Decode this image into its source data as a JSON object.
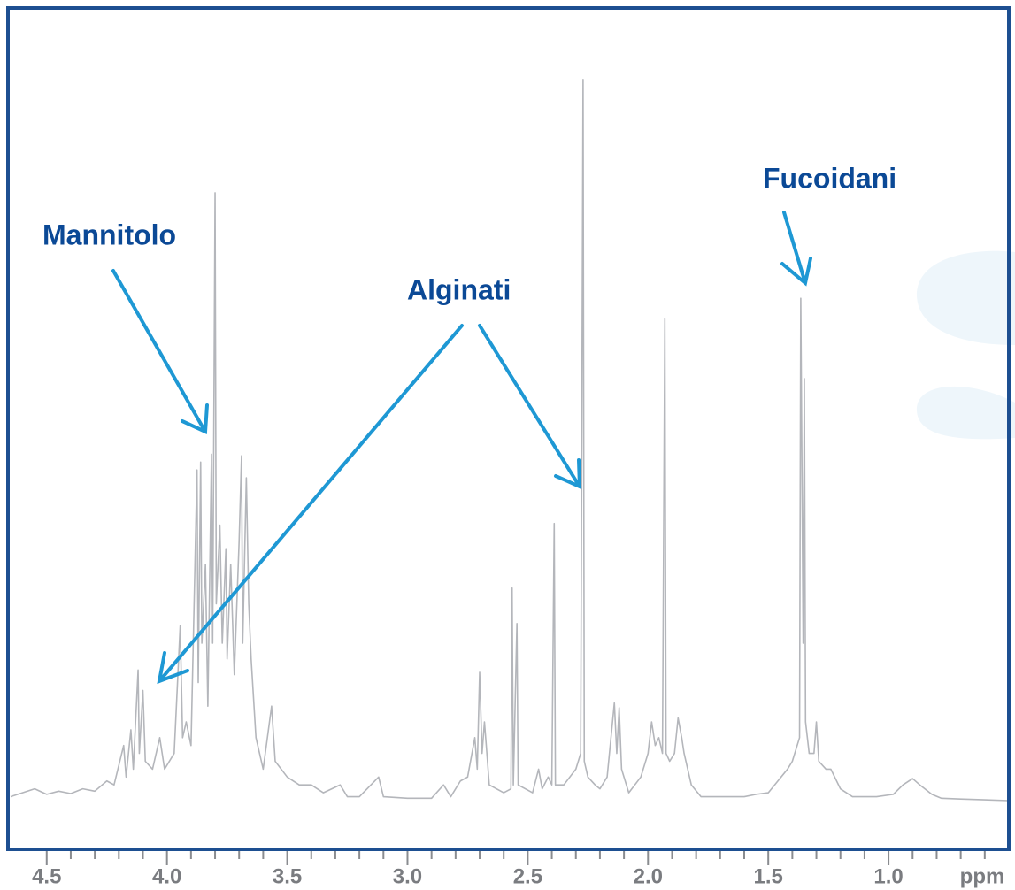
{
  "chart_data": {
    "type": "line",
    "x_label": "ppm",
    "annotations": [
      "Mannitolo",
      "Alginati",
      "Fucoidani"
    ],
    "color": "#b4b6bb",
    "xlim": [
      4.65,
      0.5
    ],
    "ylim": [
      0,
      100
    ],
    "xticks": [
      4.5,
      {
        "value": 4,
        "label": "4.0"
      },
      3.5,
      {
        "value": 3,
        "label": "3.0"
      },
      2.5,
      {
        "value": 2,
        "label": "2.0"
      },
      1.5,
      {
        "value": 1,
        "label": "1.0"
      }
    ],
    "minor_xticks": [
      4.4,
      4.3,
      4.2,
      4.1,
      3.9,
      3.8,
      3.7,
      3.6,
      3.4,
      3.3,
      3.2,
      3.1,
      2.9,
      2.8,
      2.7,
      2.6,
      2.4,
      2.3,
      2.2,
      2.1,
      1.9,
      1.8,
      1.7,
      1.6,
      1.4,
      1.3,
      1.2,
      1.1,
      0.9,
      0.8,
      0.7,
      0.6
    ],
    "x": [
      4.65,
      4.55,
      4.5,
      4.45,
      4.4,
      4.35,
      4.3,
      4.25,
      4.22,
      4.18,
      4.17,
      4.15,
      4.14,
      4.12,
      4.115,
      4.1,
      4.09,
      4.06,
      4.03,
      4.01,
      3.97,
      3.945,
      3.935,
      3.92,
      3.9,
      3.875,
      3.87,
      3.86,
      3.855,
      3.84,
      3.83,
      3.815,
      3.81,
      3.8,
      3.795,
      3.78,
      3.77,
      3.755,
      3.75,
      3.735,
      3.72,
      3.7,
      3.69,
      3.685,
      3.67,
      3.66,
      3.65,
      3.63,
      3.6,
      3.565,
      3.55,
      3.5,
      3.45,
      3.4,
      3.35,
      3.28,
      3.25,
      3.2,
      3.12,
      3.1,
      3.0,
      2.9,
      2.85,
      2.82,
      2.78,
      2.75,
      2.72,
      2.71,
      2.7,
      2.69,
      2.68,
      2.66,
      2.6,
      2.57,
      2.565,
      2.56,
      2.545,
      2.54,
      2.48,
      2.455,
      2.44,
      2.415,
      2.4,
      2.39,
      2.385,
      2.35,
      2.3,
      2.28,
      2.27,
      2.265,
      2.25,
      2.22,
      2.2,
      2.17,
      2.14,
      2.13,
      2.12,
      2.11,
      2.08,
      2.03,
      2.0,
      1.985,
      1.97,
      1.955,
      1.94,
      1.93,
      1.925,
      1.91,
      1.89,
      1.875,
      1.86,
      1.85,
      1.82,
      1.78,
      1.7,
      1.6,
      1.55,
      1.5,
      1.46,
      1.42,
      1.4,
      1.37,
      1.365,
      1.355,
      1.35,
      1.345,
      1.33,
      1.31,
      1.3,
      1.29,
      1.26,
      1.24,
      1.2,
      1.15,
      1.05,
      0.98,
      0.94,
      0.9,
      0.87,
      0.82,
      0.78,
      0.7,
      0.6,
      0.5
    ],
    "values": [
      0.5,
      1.5,
      0.8,
      1.2,
      0.9,
      1.5,
      1.2,
      2.5,
      2,
      7,
      3,
      9,
      4,
      16.6,
      6,
      14,
      5,
      4,
      8,
      4,
      6,
      22.2,
      8,
      10,
      7,
      42,
      15,
      43,
      20,
      30,
      12,
      44,
      20,
      77.2,
      25,
      35,
      20,
      32,
      18,
      30,
      16,
      33,
      43.8,
      20,
      41,
      25,
      18,
      8,
      4,
      12,
      5,
      3,
      2,
      2,
      1,
      2,
      0.5,
      0.5,
      3,
      0.5,
      0.3,
      0.3,
      2,
      0.5,
      2.5,
      3,
      8,
      4,
      16.3,
      6,
      10,
      2,
      1,
      1.5,
      27,
      2,
      22.5,
      2,
      1,
      4,
      1.5,
      3,
      2,
      35.2,
      2,
      2,
      4,
      6,
      91.6,
      5,
      3,
      2,
      1.5,
      3,
      12.4,
      6,
      11.8,
      4,
      1,
      3,
      6,
      10,
      7,
      8,
      6,
      61.2,
      6,
      5,
      6,
      10.5,
      8,
      6,
      2,
      0.5,
      0.5,
      0.5,
      0.8,
      1,
      2.5,
      4,
      5,
      8,
      63.8,
      20,
      53.6,
      10,
      6,
      6,
      10,
      5,
      4,
      4,
      1.5,
      0.5,
      0.5,
      0.8,
      2,
      2.8,
      2,
      0.8,
      0.3,
      0.2,
      0.1,
      0
    ]
  }
}
